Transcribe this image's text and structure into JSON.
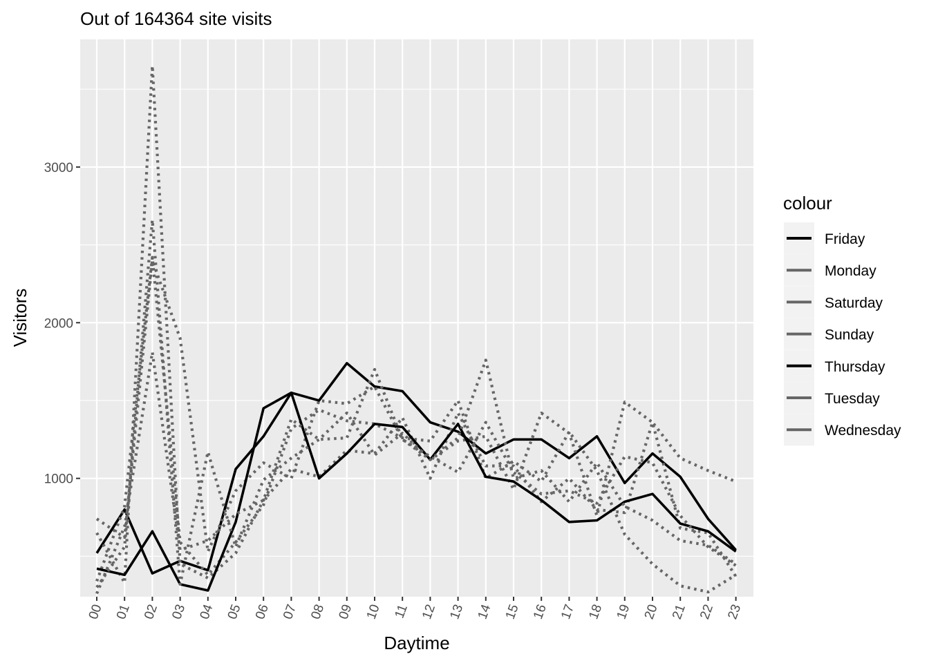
{
  "chart_data": {
    "type": "line",
    "title": "Out of 164364 site visits",
    "xlabel": "Daytime",
    "ylabel": "Visitors",
    "categories": [
      "00",
      "01",
      "02",
      "03",
      "04",
      "05",
      "06",
      "07",
      "08",
      "09",
      "10",
      "11",
      "12",
      "13",
      "14",
      "15",
      "16",
      "17",
      "18",
      "19",
      "20",
      "21",
      "22",
      "23"
    ],
    "yticks": [
      1000,
      2000,
      3000
    ],
    "ylim": [
      240,
      3820
    ],
    "grid": true,
    "legend": {
      "title": "colour",
      "position": "right",
      "entries": [
        "Friday",
        "Monday",
        "Saturday",
        "Sunday",
        "Thursday",
        "Tuesday",
        "Wednesday"
      ]
    },
    "colors": {
      "solid": "#000000",
      "dotted": "#666666",
      "panel": "#ebebeb",
      "grid": "#ffffff"
    },
    "series": [
      {
        "name": "Friday",
        "style": "solid",
        "values": [
          520,
          800,
          390,
          470,
          410,
          1060,
          1270,
          1550,
          1500,
          1740,
          1590,
          1560,
          1360,
          1300,
          1160,
          1250,
          1250,
          1130,
          1270,
          970,
          1160,
          1010,
          740,
          540
        ]
      },
      {
        "name": "Monday",
        "style": "dotted",
        "values": [
          650,
          330,
          3650,
          450,
          360,
          520,
          860,
          1060,
          1010,
          1180,
          1160,
          1390,
          1000,
          1420,
          1080,
          1080,
          850,
          1000,
          800,
          780,
          1360,
          1130,
          1050,
          980
        ]
      },
      {
        "name": "Saturday",
        "style": "dotted",
        "values": [
          740,
          620,
          2400,
          1900,
          530,
          920,
          1100,
          1000,
          1500,
          1480,
          1590,
          1250,
          1120,
          1240,
          1270,
          930,
          1420,
          1290,
          760,
          1490,
          1360,
          680,
          650,
          370
        ]
      },
      {
        "name": "Sunday",
        "style": "dotted",
        "values": [
          340,
          820,
          2420,
          590,
          380,
          590,
          830,
          1320,
          1440,
          1370,
          1350,
          1260,
          1240,
          1500,
          1000,
          1110,
          980,
          1300,
          1050,
          640,
          450,
          310,
          270,
          380
        ]
      },
      {
        "name": "Thursday",
        "style": "solid",
        "values": [
          420,
          380,
          660,
          320,
          280,
          720,
          1450,
          1550,
          1000,
          1160,
          1350,
          1330,
          1120,
          1350,
          1010,
          980,
          860,
          720,
          730,
          850,
          900,
          710,
          660,
          530
        ]
      },
      {
        "name": "Tuesday",
        "style": "dotted",
        "values": [
          300,
          560,
          2660,
          320,
          1170,
          560,
          990,
          1130,
          1250,
          1420,
          1150,
          1290,
          1120,
          1260,
          1760,
          1000,
          1050,
          850,
          1100,
          820,
          730,
          600,
          570,
          450
        ]
      },
      {
        "name": "Wednesday",
        "style": "dotted",
        "values": [
          260,
          690,
          1810,
          540,
          600,
          770,
          860,
          1380,
          1250,
          1260,
          1700,
          1250,
          1140,
          1040,
          1360,
          1040,
          900,
          920,
          840,
          1140,
          1100,
          760,
          560,
          440
        ]
      }
    ]
  }
}
